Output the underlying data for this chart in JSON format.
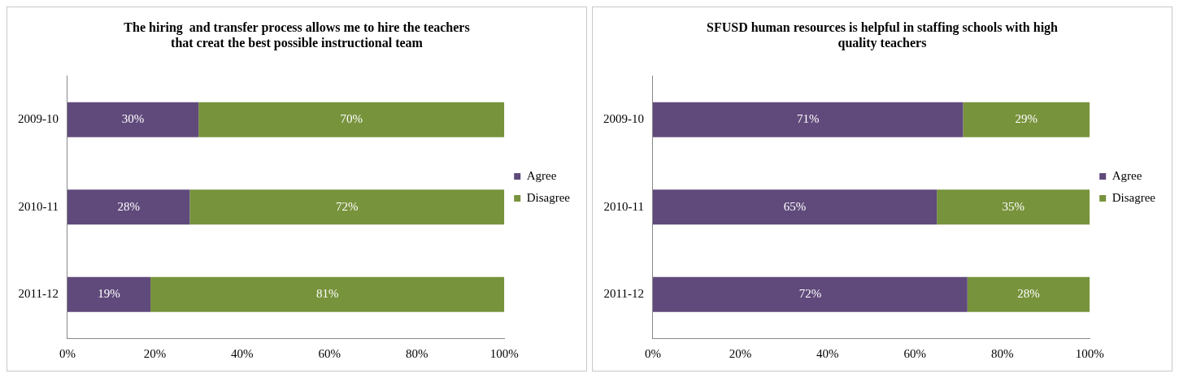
{
  "chart_data": [
    {
      "type": "bar",
      "orientation": "horizontal",
      "stacked": true,
      "title": "The hiring  and transfer process allows me to hire the teachers\nthat creat the best possible instructional team",
      "categories": [
        "2009-10",
        "2010-11",
        "2011-12"
      ],
      "series": [
        {
          "name": "Agree",
          "color": "#604a7b",
          "values": [
            30,
            28,
            19
          ],
          "value_labels": [
            "30%",
            "28%",
            "19%"
          ]
        },
        {
          "name": "Disagree",
          "color": "#77933c",
          "values": [
            70,
            72,
            81
          ],
          "value_labels": [
            "70%",
            "72%",
            "81%"
          ]
        }
      ],
      "xlim": [
        0,
        100
      ],
      "xticks": [
        {
          "value": 0,
          "label": "0%"
        },
        {
          "value": 20,
          "label": "20%"
        },
        {
          "value": 40,
          "label": "40%"
        },
        {
          "value": 60,
          "label": "60%"
        },
        {
          "value": 80,
          "label": "80%"
        },
        {
          "value": 100,
          "label": "100%"
        }
      ],
      "grid": false,
      "legend": "right"
    },
    {
      "type": "bar",
      "orientation": "horizontal",
      "stacked": true,
      "title": "SFUSD human resources is helpful in staffing schools with high\nquality teachers",
      "categories": [
        "2009-10",
        "2010-11",
        "2011-12"
      ],
      "series": [
        {
          "name": "Agree",
          "color": "#604a7b",
          "values": [
            71,
            65,
            72
          ],
          "value_labels": [
            "71%",
            "65%",
            "72%"
          ]
        },
        {
          "name": "Disagree",
          "color": "#77933c",
          "values": [
            29,
            35,
            28
          ],
          "value_labels": [
            "29%",
            "35%",
            "28%"
          ]
        }
      ],
      "xlim": [
        0,
        100
      ],
      "xticks": [
        {
          "value": 0,
          "label": "0%"
        },
        {
          "value": 20,
          "label": "20%"
        },
        {
          "value": 40,
          "label": "40%"
        },
        {
          "value": 60,
          "label": "60%"
        },
        {
          "value": 80,
          "label": "80%"
        },
        {
          "value": 100,
          "label": "100%"
        }
      ],
      "grid": false,
      "legend": "right"
    }
  ]
}
